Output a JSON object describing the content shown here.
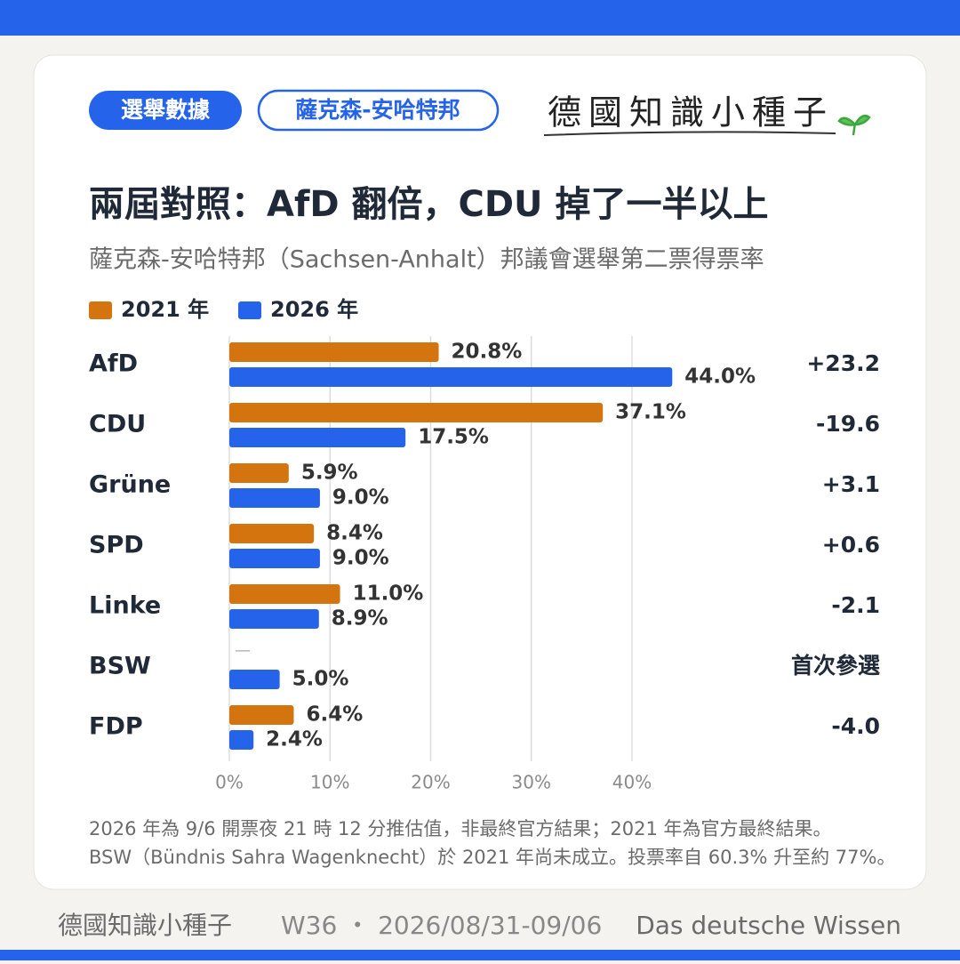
{
  "header": {
    "tags": [
      "選舉數據",
      "薩克森-安哈特邦"
    ],
    "logo": "德國知識小種子"
  },
  "chart_data": {
    "type": "bar",
    "orientation": "horizontal",
    "title": "兩屆對照：AfD 翻倍，CDU 掉了一半以上",
    "subtitle": "薩克森-安哈特邦（Sachsen-Anhalt）邦議會選舉第二票得票率",
    "categories": [
      "AfD",
      "CDU",
      "Grüne",
      "SPD",
      "Linke",
      "BSW",
      "FDP"
    ],
    "series": [
      {
        "name": "2021 年",
        "color": "#d4740f",
        "values": [
          20.8,
          37.1,
          5.9,
          8.4,
          11.0,
          null,
          6.4
        ],
        "value_labels": [
          "20.8%",
          "37.1%",
          "5.9%",
          "8.4%",
          "11.0%",
          "—",
          "6.4%"
        ]
      },
      {
        "name": "2026 年",
        "color": "#2563eb",
        "values": [
          44.0,
          17.5,
          9.0,
          9.0,
          8.9,
          5.0,
          2.4
        ],
        "value_labels": [
          "44.0%",
          "17.5%",
          "9.0%",
          "9.0%",
          "8.9%",
          "5.0%",
          "2.4%"
        ]
      }
    ],
    "changes": [
      23.2,
      -19.6,
      3.1,
      0.6,
      -2.1,
      null,
      -4.0
    ],
    "change_labels": [
      "+23.2",
      "-19.6",
      "+3.1",
      "+0.6",
      "-2.1",
      "首次參選",
      "-4.0"
    ],
    "xlim": [
      0,
      45
    ],
    "xticks": [
      {
        "value": 0,
        "label": "0%"
      },
      {
        "value": 10,
        "label": "10%"
      },
      {
        "value": 20,
        "label": "20%"
      },
      {
        "value": 30,
        "label": "30%"
      },
      {
        "value": 40,
        "label": "40%"
      }
    ],
    "grid": true
  },
  "notes": [
    "2026 年為 9/6 開票夜 21 時 12 分推估值，非最終官方結果；2021 年為官方最終結果。",
    "BSW（Bündnis Sahra Wagenknecht）於 2021 年尚未成立。投票率自 60.3% 升至約 77%。"
  ],
  "footer": [
    "德國知識小種子",
    "W36 ・ 2026/08/31-09/06",
    "Das deutsche Wissen"
  ]
}
